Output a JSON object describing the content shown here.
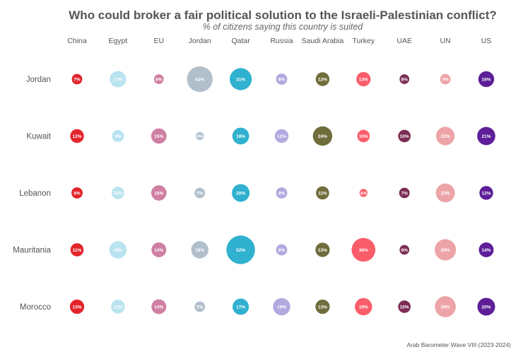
{
  "chart_data": {
    "type": "bubble-matrix",
    "title": "Who could broker a fair political solution to the Israeli-Palestinian conflict?",
    "subtitle": "% of citizens saying this country is suited",
    "columns": [
      "China",
      "Egypt",
      "EU",
      "Jordan",
      "Qatar",
      "Russia",
      "Saudi Arabia",
      "Turkey",
      "UAE",
      "UN",
      "US"
    ],
    "rows": [
      "Jordan",
      "Kuwait",
      "Lebanon",
      "Mauritania",
      "Morocco"
    ],
    "values": [
      [
        7,
        17,
        6,
        42,
        31,
        8,
        12,
        13,
        6,
        7,
        16
      ],
      [
        12,
        9,
        15,
        4,
        18,
        12,
        24,
        10,
        10,
        22,
        21
      ],
      [
        8,
        10,
        15,
        7,
        20,
        8,
        11,
        4,
        7,
        23,
        12
      ],
      [
        11,
        19,
        14,
        19,
        52,
        8,
        13,
        36,
        6,
        29,
        14
      ],
      [
        13,
        12,
        14,
        7,
        17,
        19,
        13,
        19,
        10,
        28,
        20
      ]
    ],
    "value_suffix": "%",
    "colors": [
      "#e3242b",
      "#b9e3ef",
      "#cf7fa2",
      "#b1bfcb",
      "#2fb1cf",
      "#b3a9df",
      "#6f6d3c",
      "#fa5d6a",
      "#7c2d54",
      "#eda4a8",
      "#5e1e98"
    ],
    "source": "Arab Barometer Wave VIII (2023-2024)"
  }
}
